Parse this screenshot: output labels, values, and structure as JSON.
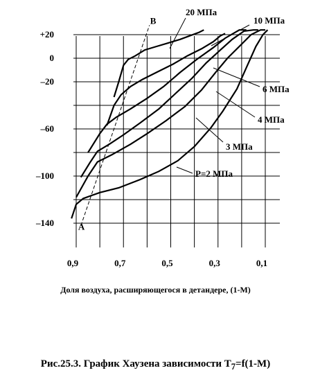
{
  "chart_data": {
    "type": "line",
    "title": "",
    "xlabel": "Доля воздуха, расширяющегося в детандере, (1-М)",
    "ylabel": "",
    "x_reversed": true,
    "xlim": [
      0.94,
      0.06
    ],
    "ylim": [
      -150,
      24
    ],
    "grid": true,
    "x_ticks": [
      {
        "value": 0.9,
        "label": "0,9"
      },
      {
        "value": 0.7,
        "label": "0,7"
      },
      {
        "value": 0.5,
        "label": "0,5"
      },
      {
        "value": 0.3,
        "label": "0,3"
      },
      {
        "value": 0.1,
        "label": "0,1"
      }
    ],
    "y_ticks": [
      {
        "value": 20,
        "label": "+20"
      },
      {
        "value": 0,
        "label": "0"
      },
      {
        "value": -20,
        "label": "–20"
      },
      {
        "value": -60,
        "label": "–60"
      },
      {
        "value": -100,
        "label": "–100"
      },
      {
        "value": -140,
        "label": "–140"
      }
    ],
    "series": [
      {
        "name": "P=2 МПа",
        "x": [
          0.92,
          0.9,
          0.87,
          0.8,
          0.72,
          0.63,
          0.55,
          0.47,
          0.4,
          0.33,
          0.28,
          0.22,
          0.18,
          0.14,
          0.11,
          0.09
        ],
        "y": [
          -136,
          -124,
          -119,
          -114,
          -110,
          -103,
          -96,
          -87,
          -75,
          -59,
          -45,
          -26,
          -8,
          10,
          20,
          24
        ]
      },
      {
        "name": "3 МПа",
        "x": [
          0.9,
          0.85,
          0.81,
          0.75,
          0.67,
          0.6,
          0.52,
          0.44,
          0.37,
          0.31,
          0.26,
          0.2,
          0.16,
          0.12,
          0.1
        ],
        "y": [
          -118,
          -100,
          -88,
          -82,
          -73,
          -64,
          -53,
          -41,
          -27,
          -12,
          0,
          12,
          20,
          24,
          24
        ]
      },
      {
        "name": "4 МПа",
        "x": [
          0.88,
          0.84,
          0.81,
          0.76,
          0.7,
          0.63,
          0.55,
          0.48,
          0.41,
          0.35,
          0.29,
          0.24,
          0.19,
          0.15,
          0.13
        ],
        "y": [
          -101,
          -88,
          -79,
          -73,
          -65,
          -55,
          -43,
          -30,
          -17,
          -4,
          7,
          16,
          23,
          24,
          24
        ]
      },
      {
        "name": "6 МПа",
        "x": [
          0.85,
          0.8,
          0.77,
          0.73,
          0.67,
          0.6,
          0.53,
          0.46,
          0.39,
          0.32,
          0.27,
          0.21,
          0.18
        ],
        "y": [
          -80,
          -64,
          -56,
          -50,
          -43,
          -34,
          -24,
          -12,
          -1,
          9,
          17,
          24,
          24
        ]
      },
      {
        "name": "10 МПа",
        "x": [
          0.77,
          0.74,
          0.71,
          0.67,
          0.62,
          0.56,
          0.49,
          0.43,
          0.37,
          0.32,
          0.29,
          0.27
        ],
        "y": [
          -57,
          -40,
          -31,
          -24,
          -18,
          -12,
          -5,
          2,
          8,
          14,
          19,
          21
        ]
      },
      {
        "name": "20 МПа",
        "x": [
          0.74,
          0.72,
          0.7,
          0.68,
          0.65,
          0.61,
          0.56,
          0.51,
          0.46,
          0.42,
          0.38,
          0.36
        ],
        "y": [
          -33,
          -20,
          -6,
          -1,
          2,
          7,
          10,
          13,
          16,
          19,
          22,
          24
        ]
      }
    ],
    "dashed_line": {
      "x": [
        0.88,
        0.59
      ],
      "y": [
        -142,
        28
      ]
    },
    "point_labels": [
      "A",
      "B"
    ]
  },
  "caption": "Рис.25.3. График Хаузена зависимости T",
  "caption_sub": "7",
  "caption_tail": "=f(1-M)"
}
